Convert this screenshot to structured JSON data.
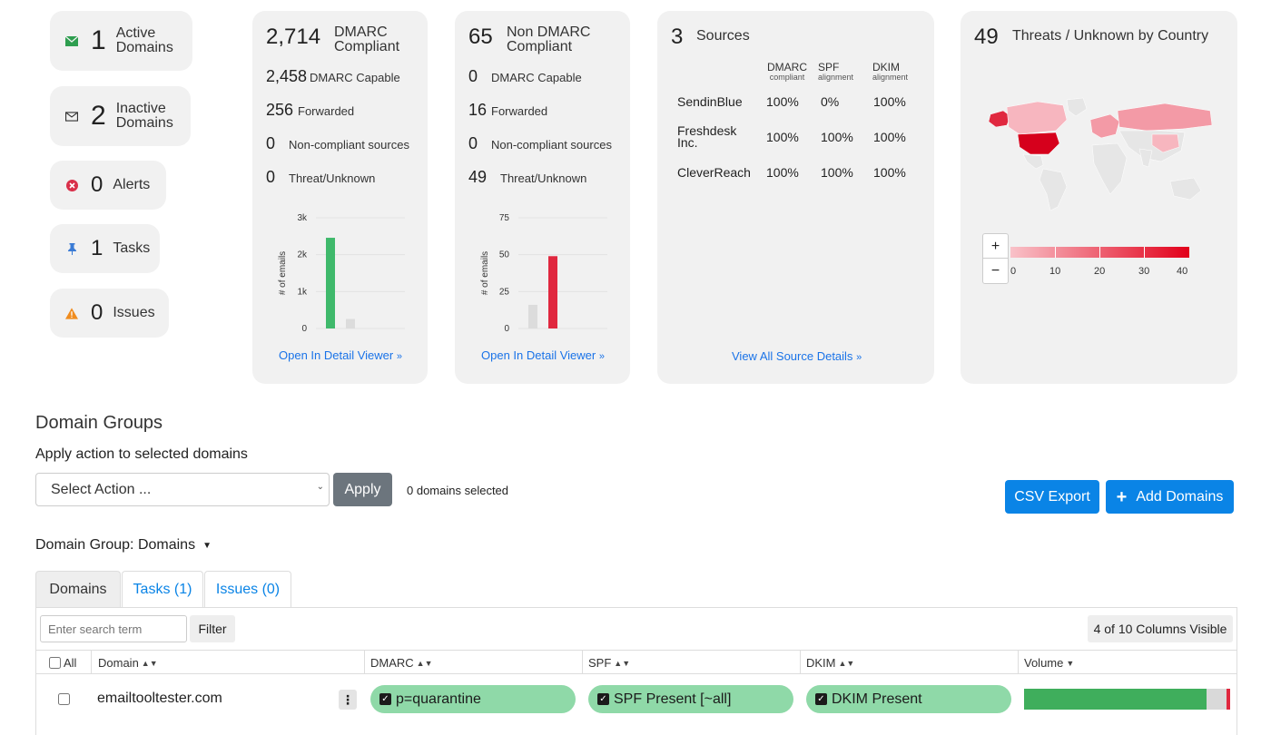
{
  "summary": {
    "active": {
      "count": "1",
      "label": "Active Domains",
      "icon": "envelope-filled-icon",
      "color": "#2e9e4f"
    },
    "inactive": {
      "count": "2",
      "label": "Inactive Domains",
      "icon": "envelope-outline-icon"
    },
    "alerts": {
      "count": "0",
      "label": "Alerts",
      "icon": "error-circle-icon",
      "color": "#d9304a"
    },
    "tasks": {
      "count": "1",
      "label": "Tasks",
      "icon": "pin-icon",
      "color": "#3a7bd5"
    },
    "issues": {
      "count": "0",
      "label": "Issues",
      "icon": "warning-icon",
      "color": "#f08c1e"
    }
  },
  "dmarc_card": {
    "count": "2,714",
    "title": "DMARC Compliant",
    "stats": [
      {
        "value": "2,458",
        "label": "DMARC Capable"
      },
      {
        "value": "256",
        "label": "Forwarded"
      },
      {
        "value": "0",
        "label": "Non-compliant sources"
      },
      {
        "value": "0",
        "label": "Threat/Unknown"
      }
    ],
    "link": "Open In Detail Viewer"
  },
  "non_dmarc_card": {
    "count": "65",
    "title": "Non DMARC Compliant",
    "stats": [
      {
        "value": "0",
        "label": "DMARC Capable"
      },
      {
        "value": "16",
        "label": "Forwarded"
      },
      {
        "value": "0",
        "label": "Non-compliant sources"
      },
      {
        "value": "49",
        "label": "Threat/Unknown"
      }
    ],
    "link": "Open In Detail Viewer"
  },
  "sources_card": {
    "count": "3",
    "title": "Sources",
    "headers": [
      {
        "main": "DMARC",
        "sub": "compliant"
      },
      {
        "main": "SPF",
        "sub": "alignment"
      },
      {
        "main": "DKIM",
        "sub": "alignment"
      }
    ],
    "rows": [
      {
        "name": "SendinBlue",
        "values": [
          "100%",
          "0%",
          "100%"
        ]
      },
      {
        "name": "Freshdesk Inc.",
        "values": [
          "100%",
          "100%",
          "100%"
        ]
      },
      {
        "name": "CleverReach",
        "values": [
          "100%",
          "100%",
          "100%"
        ]
      }
    ],
    "link": "View All Source Details"
  },
  "threats_card": {
    "count": "49",
    "title": "Threats / Unknown by Country",
    "zoom_in": "+",
    "zoom_out": "−",
    "legend_ticks": [
      "0",
      "10",
      "20",
      "30",
      "40"
    ]
  },
  "chart_data": [
    {
      "type": "bar",
      "ylabel": "# of emails",
      "ylim": [
        0,
        3000
      ],
      "yticks": [
        "0",
        "1k",
        "2k",
        "3k"
      ],
      "values": [
        2458,
        256
      ],
      "colors": [
        "#3fb96b",
        "#dcdcdc"
      ]
    },
    {
      "type": "bar",
      "ylabel": "# of emails",
      "ylim": [
        0,
        75
      ],
      "yticks": [
        "0",
        "25",
        "50",
        "75"
      ],
      "values": [
        16,
        49
      ],
      "colors": [
        "#dcdcdc",
        "#e0283f"
      ]
    }
  ],
  "domain_groups": {
    "heading": "Domain Groups",
    "apply_label": "Apply action to selected domains",
    "select_placeholder": "Select Action ...",
    "apply_button": "Apply",
    "selected_count": "0 domains selected",
    "csv_export": "CSV Export",
    "add_domains": "Add Domains",
    "group_label": "Domain Group: Domains"
  },
  "tabs": [
    {
      "label": "Domains",
      "active": true
    },
    {
      "label": "Tasks (1)",
      "active": false
    },
    {
      "label": "Issues (0)",
      "active": false
    }
  ],
  "table": {
    "search_placeholder": "Enter search term",
    "filter_button": "Filter",
    "columns_visible": "4 of 10 Columns Visible",
    "headers": {
      "all": "All",
      "domain": "Domain",
      "dmarc": "DMARC",
      "spf": "SPF",
      "dkim": "DKIM",
      "volume": "Volume"
    },
    "rows": [
      {
        "domain": "emailtooltester.com",
        "dmarc": "p=quarantine",
        "spf": "SPF Present [~all]",
        "dkim": "DKIM Present",
        "volume": {
          "compliant": 2714,
          "non_compliant": 16,
          "threat": 49
        }
      }
    ]
  }
}
